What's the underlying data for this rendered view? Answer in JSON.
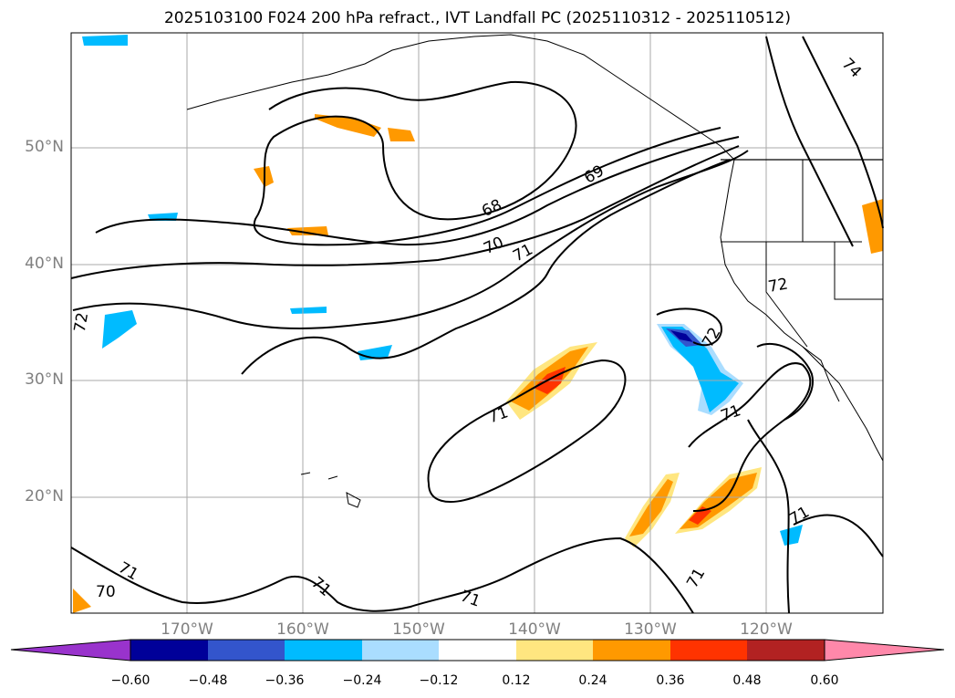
{
  "title": "2025103100 F024 200 hPa refract., IVT Landfall PC (2025110312 - 2025110512)",
  "lat_labels": [
    "50°N",
    "40°N",
    "30°N",
    "20°N"
  ],
  "lon_labels": [
    "170°W",
    "160°W",
    "150°W",
    "140°W",
    "130°W",
    "120°W"
  ],
  "contour_labels": [
    "68",
    "69",
    "70",
    "71",
    "72",
    "74",
    "71",
    "71",
    "71",
    "71",
    "71",
    "71",
    "70",
    "72",
    "72",
    "71"
  ],
  "colorbar": {
    "ticks": [
      "−0.60",
      "−0.48",
      "−0.36",
      "−0.24",
      "−0.12",
      "0.12",
      "0.24",
      "0.36",
      "0.48",
      "0.60"
    ],
    "colors": [
      "#9933cc",
      "#000099",
      "#3355cc",
      "#00bbff",
      "#aaddff",
      "#ffffff",
      "#ffe680",
      "#ff9900",
      "#ff3300",
      "#b22222",
      "#ff88aa"
    ]
  }
}
